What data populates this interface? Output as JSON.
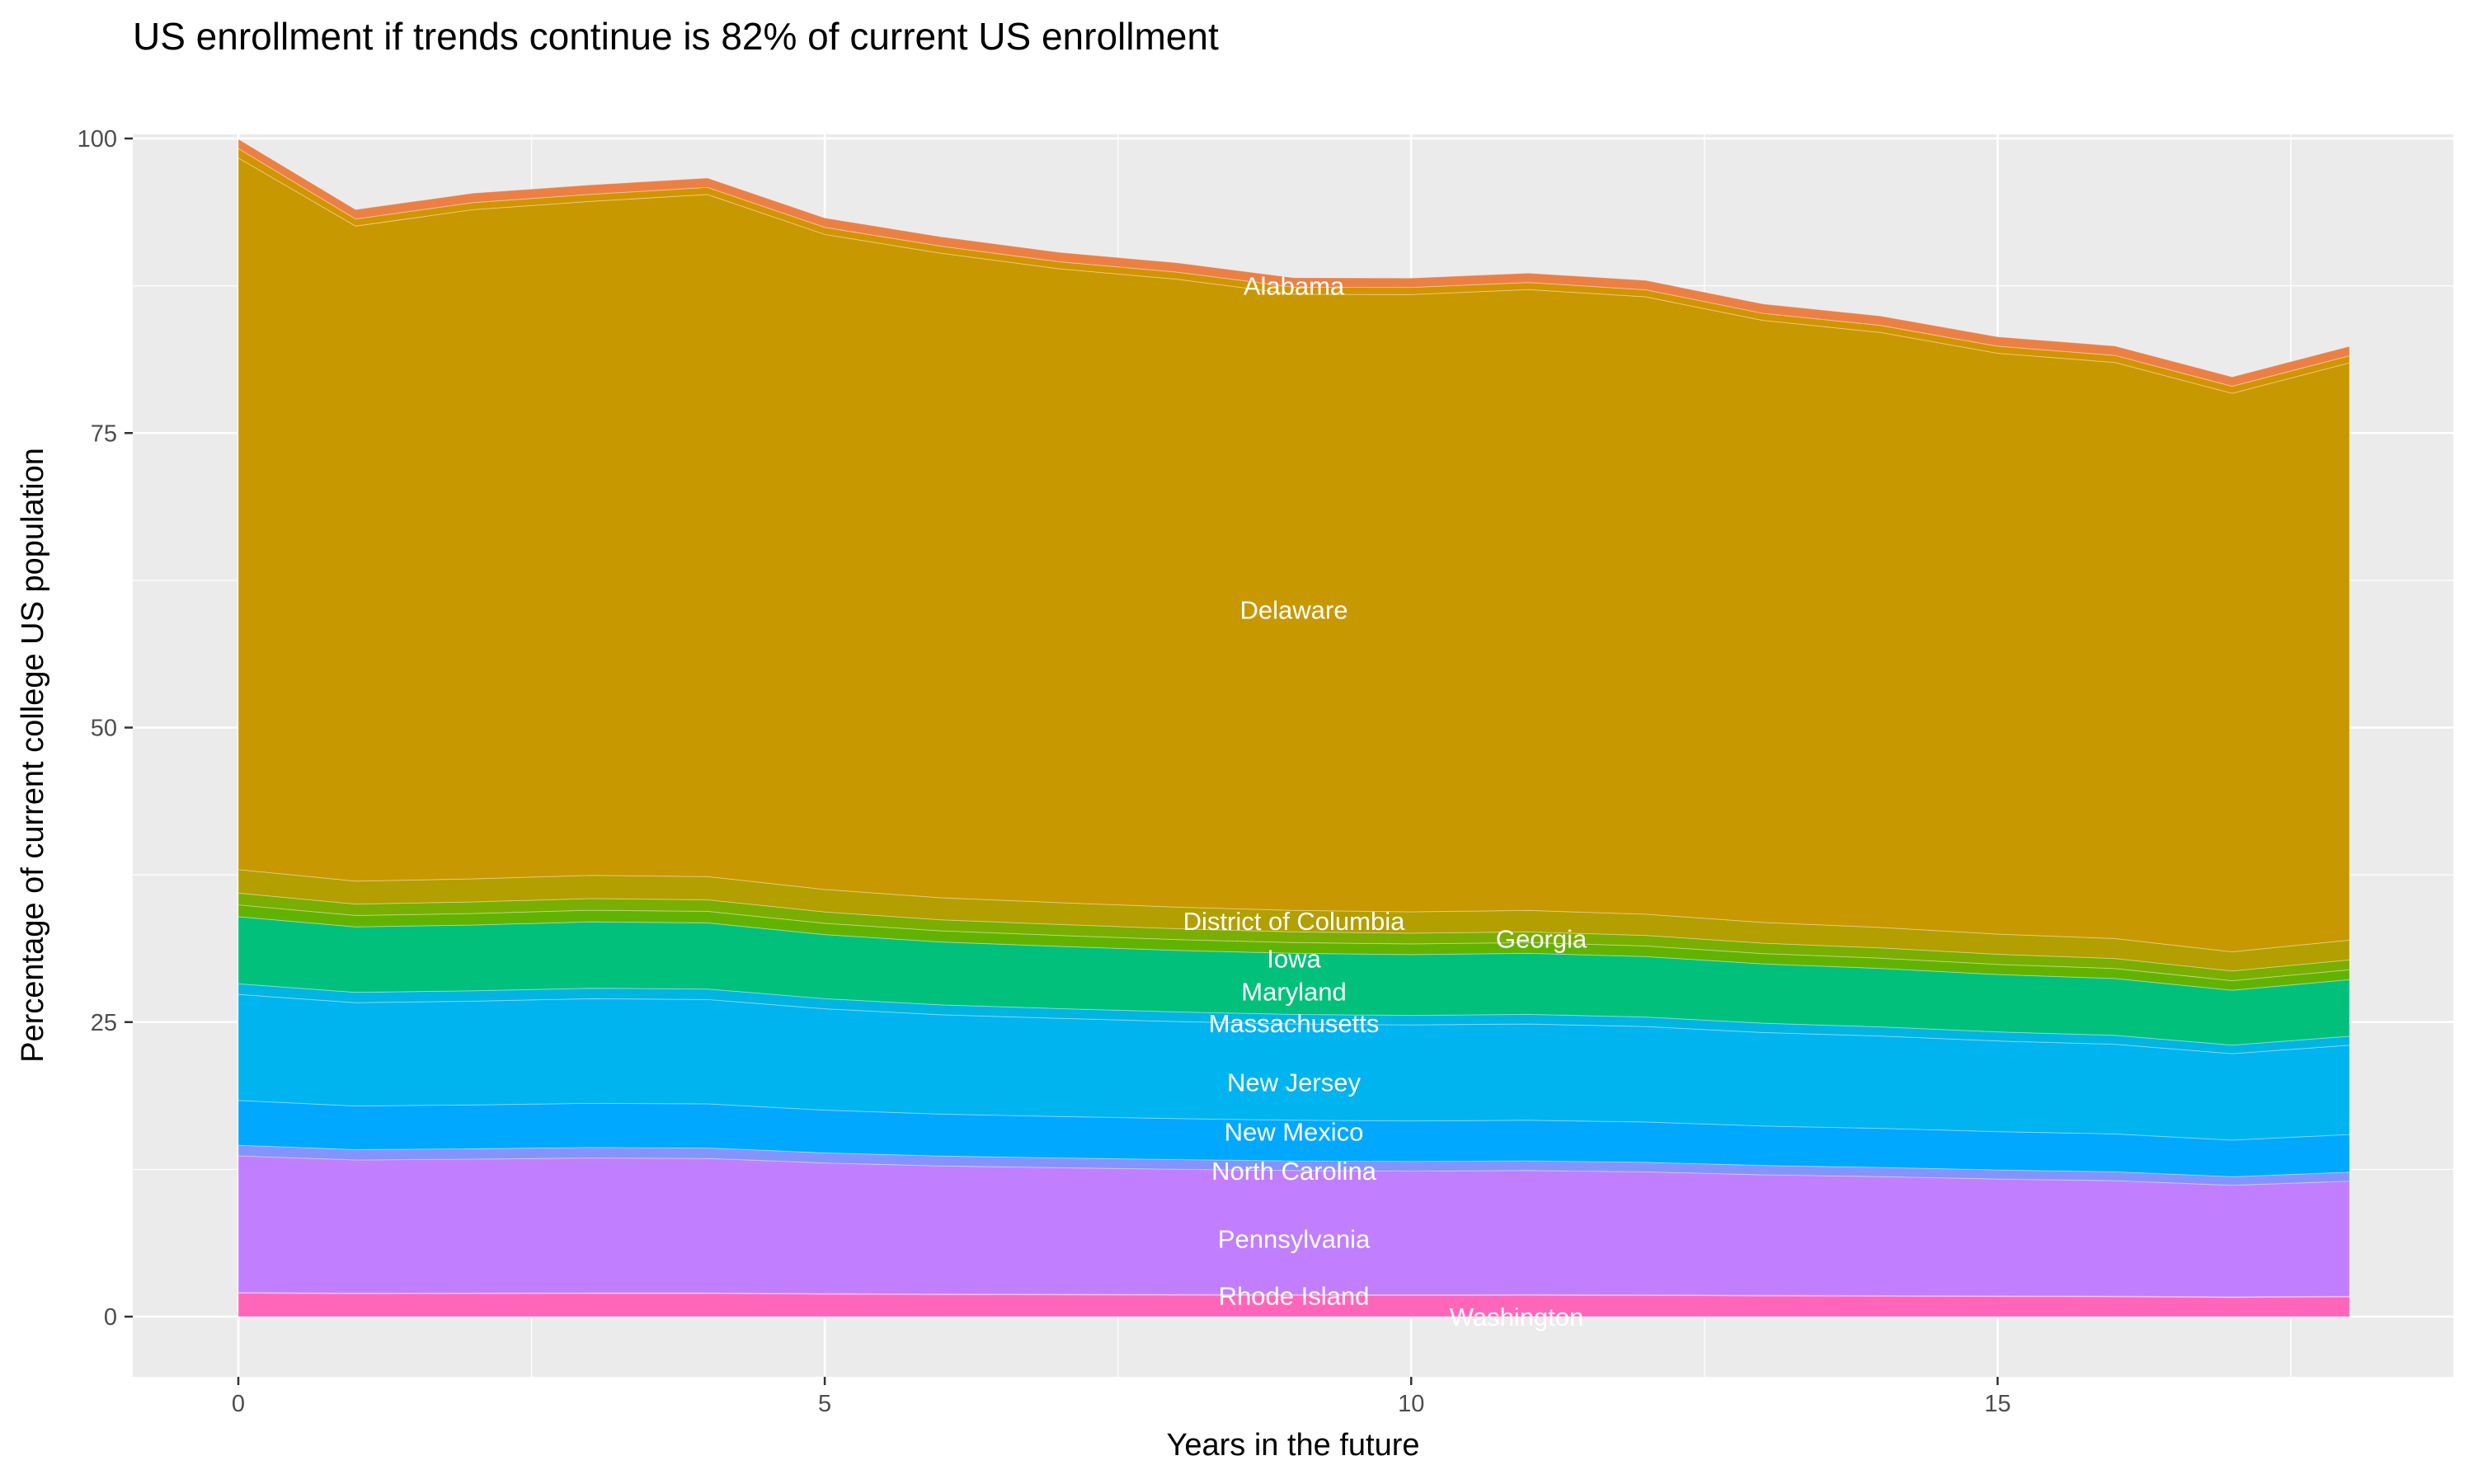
{
  "chart_data": {
    "type": "area",
    "stacked": true,
    "title": "US enrollment if trends continue is 82% of current US enrollment",
    "xlabel": "Years in the future",
    "ylabel": "Percentage of current college US population",
    "xlim": [
      -0.9,
      18.9
    ],
    "ylim": [
      -5,
      104.5
    ],
    "x_ticks": [
      "0",
      "5",
      "10",
      "15"
    ],
    "y_ticks": [
      "0",
      "25",
      "50",
      "75",
      "100"
    ],
    "grid": true,
    "legend": "none (direct labels)",
    "x": [
      0,
      1,
      2,
      3,
      4,
      5,
      6,
      7,
      8,
      9,
      10,
      11,
      12,
      13,
      14,
      15,
      16,
      17,
      18
    ],
    "series": [
      {
        "name": "Washington",
        "color": "#FF66BA",
        "values": [
          2.0,
          1.95,
          1.96,
          1.97,
          1.97,
          1.91,
          1.87,
          1.85,
          1.83,
          1.82,
          1.81,
          1.82,
          1.8,
          1.76,
          1.74,
          1.71,
          1.69,
          1.63,
          1.68
        ]
      },
      {
        "name": "Rhode Island",
        "color": "#F066E0",
        "values": [
          0.05,
          0.05,
          0.05,
          0.05,
          0.05,
          0.05,
          0.05,
          0.05,
          0.05,
          0.05,
          0.05,
          0.05,
          0.05,
          0.05,
          0.05,
          0.05,
          0.05,
          0.05,
          0.05
        ]
      },
      {
        "name": "Pennsylvania",
        "color": "#C17FFF",
        "values": [
          11.6,
          11.3,
          11.36,
          11.45,
          11.41,
          11.08,
          10.87,
          10.74,
          10.63,
          10.53,
          10.5,
          10.53,
          10.44,
          10.23,
          10.1,
          9.92,
          9.8,
          9.47,
          9.77
        ]
      },
      {
        "name": "North Carolina",
        "color": "#8494FF",
        "values": [
          0.9,
          0.88,
          0.88,
          0.89,
          0.89,
          0.86,
          0.84,
          0.83,
          0.82,
          0.82,
          0.81,
          0.82,
          0.81,
          0.79,
          0.78,
          0.77,
          0.76,
          0.73,
          0.76
        ]
      },
      {
        "name": "New Mexico",
        "color": "#00A8FF",
        "values": [
          3.8,
          3.7,
          3.72,
          3.75,
          3.74,
          3.63,
          3.56,
          3.52,
          3.48,
          3.45,
          3.44,
          3.45,
          3.42,
          3.35,
          3.31,
          3.25,
          3.21,
          3.1,
          3.2
        ]
      },
      {
        "name": "New Jersey",
        "color": "#00B4F0",
        "values": [
          9.0,
          8.77,
          8.81,
          8.88,
          8.86,
          8.6,
          8.43,
          8.33,
          8.24,
          8.17,
          8.15,
          8.17,
          8.1,
          7.94,
          7.84,
          7.7,
          7.61,
          7.34,
          7.58
        ]
      },
      {
        "name": "Massachusetts",
        "color": "#00B5E2",
        "values": [
          0.9,
          0.88,
          0.88,
          0.89,
          0.89,
          0.86,
          0.84,
          0.83,
          0.82,
          0.82,
          0.81,
          0.82,
          0.81,
          0.79,
          0.78,
          0.77,
          0.76,
          0.73,
          0.76
        ]
      },
      {
        "name": "Maryland",
        "color": "#00C07B",
        "values": [
          5.7,
          5.55,
          5.58,
          5.63,
          5.61,
          5.44,
          5.34,
          5.28,
          5.22,
          5.18,
          5.16,
          5.18,
          5.13,
          5.03,
          4.96,
          4.87,
          4.82,
          4.65,
          4.8
        ]
      },
      {
        "name": "Iowa",
        "color": "#62B300",
        "values": [
          1.0,
          0.97,
          0.98,
          0.99,
          0.98,
          0.96,
          0.94,
          0.93,
          0.92,
          0.91,
          0.91,
          0.91,
          0.9,
          0.88,
          0.87,
          0.86,
          0.85,
          0.82,
          0.84
        ]
      },
      {
        "name": "Georgia",
        "color": "#7AAE00",
        "values": [
          1.0,
          0.97,
          0.98,
          0.99,
          0.98,
          0.96,
          0.94,
          0.93,
          0.92,
          0.91,
          0.91,
          0.91,
          0.9,
          0.88,
          0.87,
          0.86,
          0.85,
          0.82,
          0.84
        ]
      },
      {
        "name": "District of Columbia",
        "color": "#B39F00",
        "values": [
          2.0,
          1.95,
          1.96,
          1.97,
          1.97,
          1.91,
          1.87,
          1.85,
          1.83,
          1.82,
          1.81,
          1.82,
          1.8,
          1.76,
          1.74,
          1.71,
          1.69,
          1.63,
          1.68
        ]
      },
      {
        "name": "Delaware",
        "color": "#C89800",
        "values": [
          60.4,
          55.6,
          56.8,
          57.2,
          57.9,
          55.6,
          54.7,
          53.8,
          53.3,
          52.3,
          52.4,
          52.7,
          52.4,
          51.1,
          50.5,
          49.3,
          48.9,
          47.4,
          49.0
        ]
      },
      {
        "name": "",
        "color": "#D29400",
        "values": [
          0.8,
          0.6,
          0.6,
          0.6,
          0.6,
          0.6,
          0.6,
          0.6,
          0.6,
          0.6,
          0.6,
          0.6,
          0.6,
          0.6,
          0.6,
          0.6,
          0.6,
          0.6,
          0.6
        ]
      },
      {
        "name": "Alabama",
        "color": "#EC8044",
        "values": [
          0.8,
          0.8,
          0.8,
          0.8,
          0.8,
          0.8,
          0.8,
          0.8,
          0.8,
          0.8,
          0.8,
          0.8,
          0.8,
          0.8,
          0.8,
          0.8,
          0.8,
          0.8,
          0.8
        ]
      }
    ],
    "annotations": [
      {
        "text": "Alabama",
        "x": 9,
        "y": 87.5
      },
      {
        "text": "Delaware",
        "x": 9,
        "y": 60
      },
      {
        "text": "District of Columbia",
        "x": 9,
        "y": 33.6
      },
      {
        "text": "Georgia",
        "x": 9,
        "y": 32.1
      },
      {
        "text": "Iowa",
        "x": 9,
        "y": 30.4
      },
      {
        "text": "Maryland",
        "x": 9,
        "y": 27.6
      },
      {
        "text": "Massachusetts",
        "x": 9,
        "y": 24.9
      },
      {
        "text": "New Jersey",
        "x": 9,
        "y": 19.9
      },
      {
        "text": "New Mexico",
        "x": 9,
        "y": 15.7
      },
      {
        "text": "North Carolina",
        "x": 9,
        "y": 12.4
      },
      {
        "text": "Pennsylvania",
        "x": 9,
        "y": 6.6
      },
      {
        "text": "Rhode Island",
        "x": 9,
        "y": 1.8
      },
      {
        "text": "Washington",
        "x": 9,
        "y": 0
      }
    ]
  }
}
